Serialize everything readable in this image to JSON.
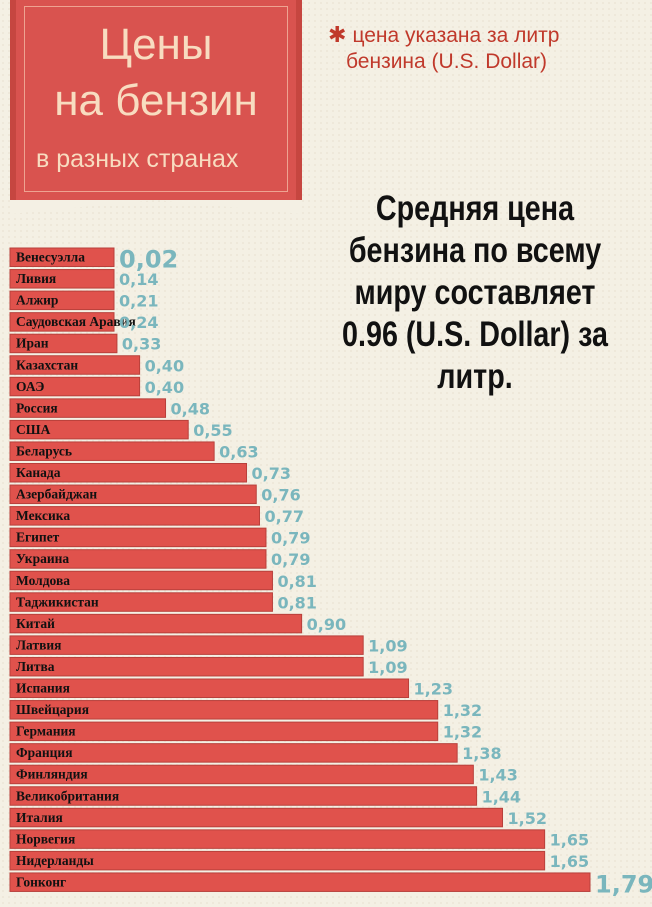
{
  "header": {
    "title_line1": "Цены",
    "title_line2": "на бензин",
    "title_line3": "в разных странах"
  },
  "note": {
    "star": "✱",
    "line1": "цена указана за литр",
    "line2": "бензина (U.S. Dollar)"
  },
  "average": {
    "text_lines": [
      "Средняя цена",
      "бензина по всему",
      "миру составляет",
      "0.96 (U.S. Dollar) за",
      "литр."
    ]
  },
  "colors": {
    "bar": "#e0524c",
    "bar_border": "#b8403b",
    "value": "#7ab6bd",
    "banner": "#d9534f"
  },
  "chart_data": {
    "type": "bar",
    "orientation": "horizontal",
    "categories": [
      "Венесуэлла",
      "Ливия",
      "Алжир",
      "Саудовская Аравия",
      "Иран",
      "Казахстан",
      "ОАЭ",
      "Россия",
      "США",
      "Беларусь",
      "Канада",
      "Азербайджан",
      "Мексика",
      "Египет",
      "Украина",
      "Молдова",
      "Таджикистан",
      "Китай",
      "Латвия",
      "Литва",
      "Испания",
      "Швейцария",
      "Германия",
      "Франция",
      "Финляндия",
      "Великобритания",
      "Италия",
      "Норвегия",
      "Нидерланды",
      "Гонконг"
    ],
    "values": [
      0.02,
      0.14,
      0.21,
      0.24,
      0.33,
      0.4,
      0.4,
      0.48,
      0.55,
      0.63,
      0.73,
      0.76,
      0.77,
      0.79,
      0.79,
      0.81,
      0.81,
      0.9,
      1.09,
      1.09,
      1.23,
      1.32,
      1.32,
      1.38,
      1.43,
      1.44,
      1.52,
      1.65,
      1.65,
      1.79
    ],
    "value_labels": [
      "0,02",
      "0,14",
      "0,21",
      "0,24",
      "0,33",
      "0,40",
      "0,40",
      "0,48",
      "0,55",
      "0,63",
      "0,73",
      "0,76",
      "0,77",
      "0,79",
      "0,79",
      "0,81",
      "0,81",
      "0,90",
      "1,09",
      "1,09",
      "1,23",
      "1,32",
      "1,32",
      "1,38",
      "1,43",
      "1,44",
      "1,52",
      "1,65",
      "1,65",
      "1,79"
    ],
    "unit": "U.S. Dollar"
  }
}
